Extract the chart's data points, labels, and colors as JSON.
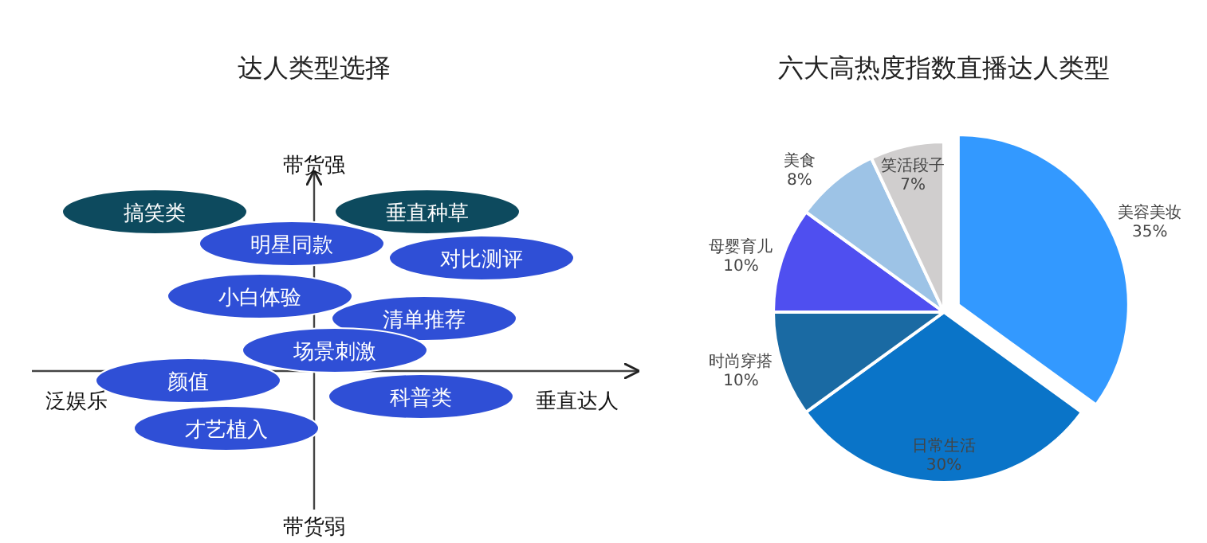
{
  "chart_data": [
    {
      "type": "other",
      "title": "达人类型选择",
      "annotations": [
        "搞笑类",
        "垂直种草",
        "明星同款",
        "对比测评",
        "小白体验",
        "清单推荐",
        "场景刺激",
        "颜值",
        "科普类",
        "才艺植入",
        "带货强",
        "带货弱",
        "泛娱乐",
        "垂直达人"
      ]
    },
    {
      "type": "pie",
      "title": "六大高热度指数直播达人类型",
      "data_labels": true,
      "categories": [
        "美容美妆",
        "日常生活",
        "时尚穿搭",
        "母婴育儿",
        "美食",
        "笑活段子"
      ],
      "values": [
        35,
        30,
        10,
        10,
        8,
        7
      ],
      "value_labels": [
        "35%",
        "30%",
        "10%",
        "10%",
        "8%",
        "7%"
      ],
      "colors": [
        "#3399ff",
        "#0a74c8",
        "#1a6aa3",
        "#4f4ff0",
        "#9dc3e6",
        "#d0cece"
      ]
    }
  ]
}
